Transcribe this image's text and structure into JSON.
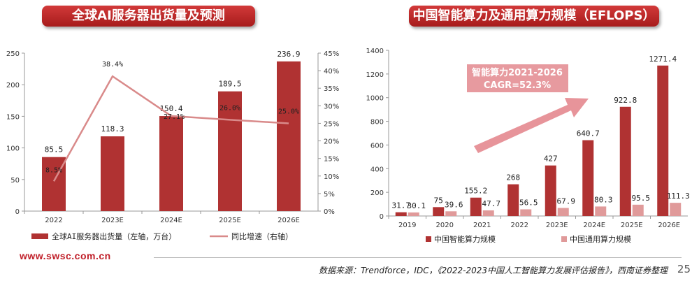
{
  "left_title": "全球AI服务器出货量及预测",
  "right_title": "中国智能算力及通用算力规模（EFLOPS）",
  "footer_url": "www.swsc.com.cn",
  "source": "数据来源：Trendforce，IDC，《2022-2023中国人工智能算力发展评估报告》，西南证券整理",
  "page_number": "25",
  "colors": {
    "bar": "#b03232",
    "line": "#d98a8a",
    "light_bar": "#e09a9a",
    "arrow": "#e7949a",
    "banner": "#b52222"
  },
  "chart_data": [
    {
      "type": "bar",
      "title": "全球AI服务器出货量及预测",
      "categories": [
        "2022",
        "2023E",
        "2024E",
        "2025E",
        "2026E"
      ],
      "series": [
        {
          "name": "全球AI服务器出货量（左轴，万台）",
          "type": "bar",
          "axis": "left",
          "values": [
            85.5,
            118.3,
            150.4,
            189.5,
            236.9
          ],
          "labels": [
            "85.5",
            "118.3",
            "150.4",
            "189.5",
            "236.9"
          ]
        },
        {
          "name": "同比增速（右轴）",
          "type": "line",
          "axis": "right",
          "values": [
            8.5,
            38.4,
            27.1,
            26.0,
            25.0
          ],
          "labels": [
            "8.5%",
            "38.4%",
            "27.1%",
            "26.0%",
            "25.0%"
          ]
        }
      ],
      "y_left": {
        "range": [
          0,
          250
        ],
        "ticks": [
          "0",
          "50",
          "100",
          "150",
          "200",
          "250"
        ]
      },
      "y_right": {
        "range": [
          0,
          45
        ],
        "ticks": [
          "0%",
          "5%",
          "10%",
          "15%",
          "20%",
          "25%",
          "30%",
          "35%",
          "40%",
          "45%"
        ]
      },
      "legend_position": "bottom"
    },
    {
      "type": "bar",
      "title": "中国智能算力及通用算力规模（EFLOPS）",
      "categories": [
        "2019",
        "2020",
        "2021",
        "2022",
        "2023E",
        "2024E",
        "2025E",
        "2026E"
      ],
      "series": [
        {
          "name": "中国智能算力规模",
          "values": [
            31.7,
            75,
            155.2,
            268,
            427,
            640.7,
            922.8,
            1271.4
          ],
          "labels": [
            "31.7",
            "75",
            "155.2",
            "268",
            "427",
            "640.7",
            "922.8",
            "1271.4"
          ]
        },
        {
          "name": "中国通用算力规模",
          "values": [
            30.1,
            39.6,
            47.7,
            56.5,
            67.9,
            80.3,
            95.5,
            111.3
          ],
          "labels": [
            "30.1",
            "39.6",
            "47.7",
            "56.5",
            "67.9",
            "80.3",
            "95.5",
            "111.3"
          ]
        }
      ],
      "y": {
        "range": [
          0,
          1400
        ],
        "ticks": [
          "0",
          "200",
          "400",
          "600",
          "800",
          "1000",
          "1200",
          "1400"
        ]
      },
      "annotation": [
        "智能算力2021-2026",
        "CAGR=52.3%"
      ],
      "legend_position": "bottom"
    }
  ]
}
